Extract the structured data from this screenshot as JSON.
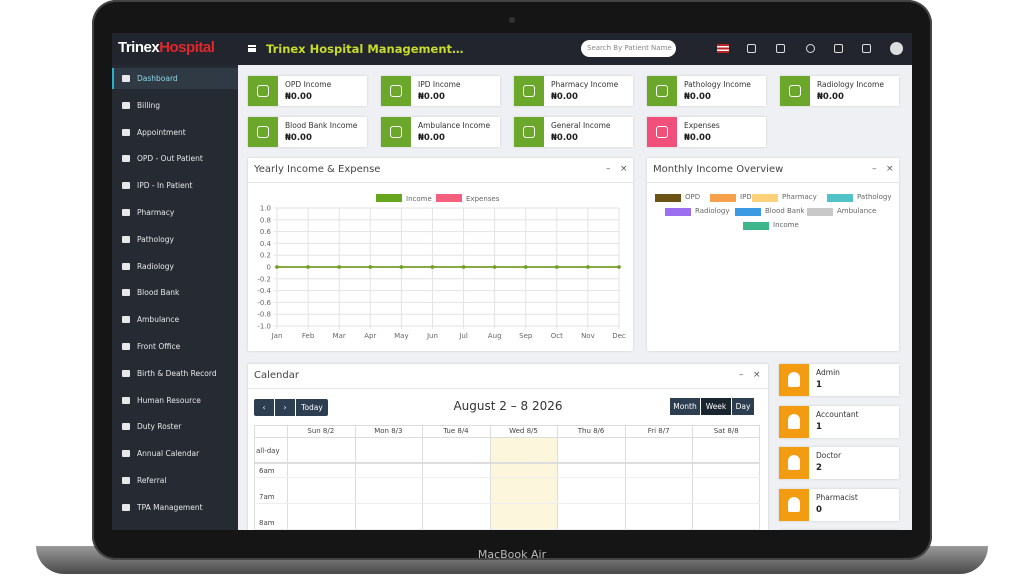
{
  "header": {
    "logo_first": "Trinex",
    "logo_second": "Hospital",
    "title": "Trinex Hospital Management…",
    "search_placeholder": "Search By Patient Name"
  },
  "sidebar": {
    "items": [
      "Dashboard",
      "Billing",
      "Appointment",
      "OPD - Out Patient",
      "IPD - In Patient",
      "Pharmacy",
      "Pathology",
      "Radiology",
      "Blood Bank",
      "Ambulance",
      "Front Office",
      "Birth & Death Record",
      "Human Resource",
      "Duty Roster",
      "Annual Calendar",
      "Referral",
      "TPA Management"
    ]
  },
  "income_cards": [
    {
      "label": "OPD Income",
      "amount": "₦0.00"
    },
    {
      "label": "IPD Income",
      "amount": "₦0.00"
    },
    {
      "label": "Pharmacy Income",
      "amount": "₦0.00"
    },
    {
      "label": "Pathology Income",
      "amount": "₦0.00"
    },
    {
      "label": "Radiology Income",
      "amount": "₦0.00"
    },
    {
      "label": "Blood Bank Income",
      "amount": "₦0.00"
    },
    {
      "label": "Ambulance Income",
      "amount": "₦0.00"
    },
    {
      "label": "General Income",
      "amount": "₦0.00"
    },
    {
      "label": "Expenses",
      "amount": "₦0.00"
    }
  ],
  "chart_data": {
    "type": "line",
    "title": "Yearly Income & Expense",
    "categories": [
      "Jan",
      "Feb",
      "Mar",
      "Apr",
      "May",
      "Jun",
      "Jul",
      "Aug",
      "Sep",
      "Oct",
      "Nov",
      "Dec"
    ],
    "series": [
      {
        "name": "Income",
        "color": "#66a61e",
        "values": [
          0,
          0,
          0,
          0,
          0,
          0,
          0,
          0,
          0,
          0,
          0,
          0
        ]
      },
      {
        "name": "Expenses",
        "color": "#f5607e",
        "values": [
          0,
          0,
          0,
          0,
          0,
          0,
          0,
          0,
          0,
          0,
          0,
          0
        ]
      }
    ],
    "ylim": [
      -1,
      1
    ],
    "yticks": [
      {
        "value": 1,
        "label": "1.0"
      },
      0.8,
      0.6,
      0.4,
      0.2,
      0,
      -0.2,
      -0.4,
      -0.6,
      -0.8,
      {
        "value": -1,
        "label": "-1.0"
      }
    ],
    "grid": true
  },
  "monthly_panel": {
    "title": "Monthly Income Overview",
    "legend": [
      {
        "name": "OPD",
        "color": "#6b5315"
      },
      {
        "name": "IPD",
        "color": "#f7a24a"
      },
      {
        "name": "Pharmacy",
        "color": "#fbd27a"
      },
      {
        "name": "Pathology",
        "color": "#4fc3c8"
      },
      {
        "name": "Radiology",
        "color": "#9c6ef0"
      },
      {
        "name": "Blood Bank",
        "color": "#3b9ae1"
      },
      {
        "name": "Ambulance",
        "color": "#c8c8c8"
      },
      {
        "name": "Income",
        "color": "#3fb58a"
      }
    ]
  },
  "calendar": {
    "title": "Calendar",
    "today": "Today",
    "range": "August 2 – 8 2026",
    "views": [
      "Month",
      "Week",
      "Day"
    ],
    "days": [
      "Sun 8/2",
      "Mon 8/3",
      "Tue 8/4",
      "Wed 8/5",
      "Thu 8/6",
      "Fri 8/7",
      "Sat 8/8"
    ],
    "all_day": "all-day",
    "times": [
      "6am",
      "7am",
      "8am"
    ]
  },
  "staff": [
    {
      "role": "Admin",
      "count": 1
    },
    {
      "role": "Accountant",
      "count": 1
    },
    {
      "role": "Doctor",
      "count": 2
    },
    {
      "role": "Pharmacist",
      "count": 0
    }
  ],
  "device_label": "MacBook Air"
}
